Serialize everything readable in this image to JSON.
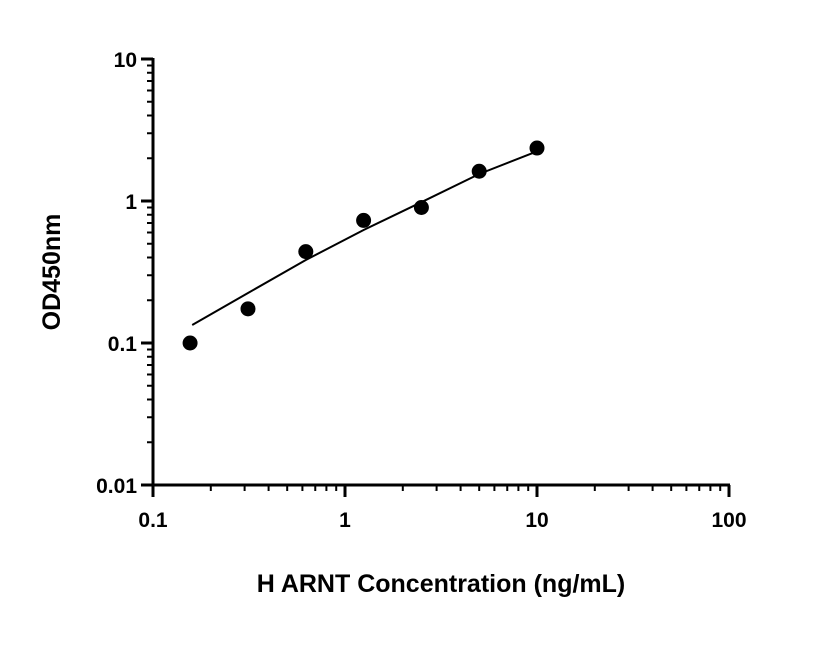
{
  "chart_data": {
    "type": "scatter",
    "title": "",
    "xlabel": "H ARNT Concentration (ng/mL)",
    "ylabel": "OD450nm",
    "xscale": "log",
    "yscale": "log",
    "xlim": [
      0.1,
      100
    ],
    "ylim": [
      0.01,
      10
    ],
    "xticks": [
      {
        "v": 0.1,
        "label": "0.1"
      },
      {
        "v": 1,
        "label": "1"
      },
      {
        "v": 10,
        "label": "10"
      },
      {
        "v": 100,
        "label": "100"
      }
    ],
    "yticks": [
      {
        "v": 0.01,
        "label": "0.01"
      },
      {
        "v": 0.1,
        "label": "0.1"
      },
      {
        "v": 1,
        "label": "1"
      },
      {
        "v": 10,
        "label": "10"
      }
    ],
    "grid": false,
    "points": {
      "x": [
        0.156,
        0.3125,
        0.625,
        1.25,
        2.5,
        5,
        10
      ],
      "y": [
        0.1,
        0.174,
        0.44,
        0.73,
        0.9,
        1.62,
        2.36
      ]
    },
    "fit_curve": {
      "x": [
        0.16,
        0.3125,
        0.625,
        1.25,
        2.5,
        5,
        10.2
      ],
      "y": [
        0.134,
        0.225,
        0.384,
        0.625,
        0.98,
        1.55,
        2.26
      ]
    },
    "color": "#000000"
  }
}
